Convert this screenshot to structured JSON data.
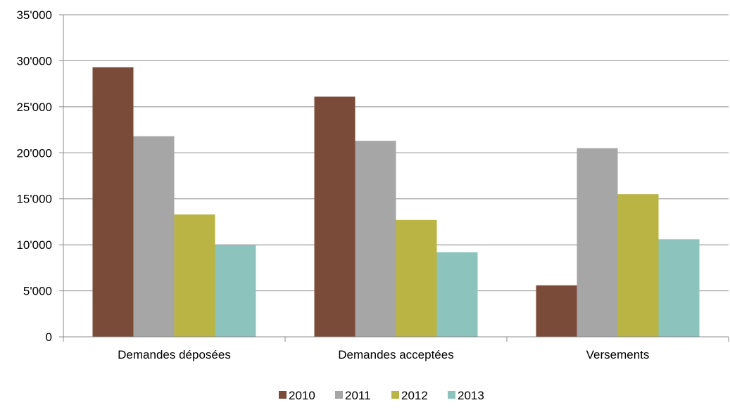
{
  "chart_data": {
    "type": "bar",
    "categories": [
      "Demandes déposées",
      "Demandes acceptées",
      "Versements"
    ],
    "series": [
      {
        "name": "2010",
        "color": "#7b4b3a",
        "values": [
          29300,
          26100,
          5600
        ]
      },
      {
        "name": "2011",
        "color": "#a6a6a6",
        "values": [
          21800,
          21300,
          20500
        ]
      },
      {
        "name": "2012",
        "color": "#b9b444",
        "values": [
          13300,
          12700,
          15500
        ]
      },
      {
        "name": "2013",
        "color": "#8dc3bd",
        "values": [
          10000,
          9200,
          10600
        ]
      }
    ],
    "y_ticks": [
      "0",
      "5'000",
      "10'000",
      "15'000",
      "20'000",
      "25'000",
      "30'000",
      "35'000"
    ],
    "ylim": [
      0,
      35000
    ],
    "grid": true,
    "legend_position": "bottom"
  }
}
